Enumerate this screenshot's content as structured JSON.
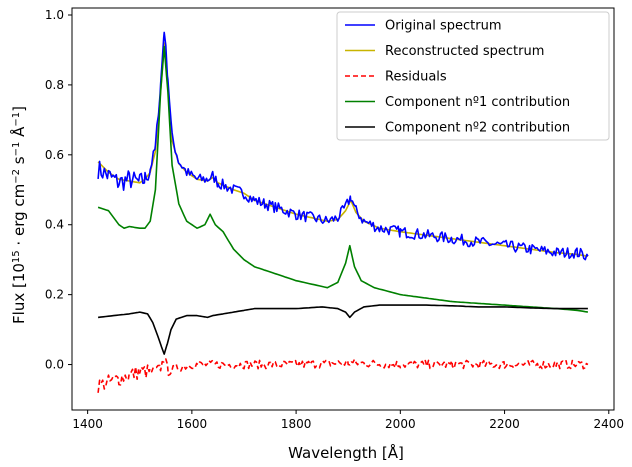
{
  "chart_data": {
    "type": "line",
    "xlabel": "Wavelength [Å]",
    "ylabel_parts": [
      "Flux [10",
      "15",
      " · erg cm",
      "−2",
      " s",
      "−1",
      " Å",
      "−1",
      "]"
    ],
    "xlim": [
      1370,
      2410
    ],
    "ylim": [
      -0.13,
      1.02
    ],
    "xticks": [
      1400,
      1600,
      1800,
      2000,
      2200,
      2400
    ],
    "yticks": [
      0.0,
      0.2,
      0.4,
      0.6,
      0.8,
      1.0
    ],
    "xtick_labels": [
      "1400",
      "1600",
      "1800",
      "2000",
      "2200",
      "2400"
    ],
    "ytick_labels": [
      "0.0",
      "0.2",
      "0.4",
      "0.6",
      "0.8",
      "1.0"
    ],
    "grid": false,
    "legend_position": "top-right",
    "series": [
      {
        "name": "Original spectrum",
        "color": "#0000ff",
        "style": "solid",
        "noise": 0.016,
        "points": [
          [
            1420,
            0.56
          ],
          [
            1440,
            0.54
          ],
          [
            1460,
            0.52
          ],
          [
            1480,
            0.53
          ],
          [
            1500,
            0.52
          ],
          [
            1510,
            0.53
          ],
          [
            1520,
            0.56
          ],
          [
            1530,
            0.62
          ],
          [
            1540,
            0.8
          ],
          [
            1547,
            0.96
          ],
          [
            1554,
            0.82
          ],
          [
            1562,
            0.65
          ],
          [
            1575,
            0.58
          ],
          [
            1590,
            0.55
          ],
          [
            1610,
            0.53
          ],
          [
            1630,
            0.53
          ],
          [
            1640,
            0.54
          ],
          [
            1650,
            0.52
          ],
          [
            1665,
            0.51
          ],
          [
            1680,
            0.5
          ],
          [
            1700,
            0.49
          ],
          [
            1720,
            0.47
          ],
          [
            1740,
            0.46
          ],
          [
            1760,
            0.45
          ],
          [
            1780,
            0.44
          ],
          [
            1800,
            0.43
          ],
          [
            1830,
            0.42
          ],
          [
            1860,
            0.41
          ],
          [
            1880,
            0.42
          ],
          [
            1895,
            0.45
          ],
          [
            1905,
            0.48
          ],
          [
            1915,
            0.44
          ],
          [
            1930,
            0.41
          ],
          [
            1960,
            0.39
          ],
          [
            2000,
            0.38
          ],
          [
            2050,
            0.37
          ],
          [
            2100,
            0.36
          ],
          [
            2150,
            0.35
          ],
          [
            2200,
            0.34
          ],
          [
            2250,
            0.33
          ],
          [
            2300,
            0.32
          ],
          [
            2340,
            0.32
          ],
          [
            2360,
            0.31
          ]
        ]
      },
      {
        "name": "Reconstructed spectrum",
        "color": "#c8b400",
        "style": "solid",
        "noise": 0.0,
        "points": [
          [
            1420,
            0.58
          ],
          [
            1440,
            0.55
          ],
          [
            1460,
            0.53
          ],
          [
            1480,
            0.525
          ],
          [
            1500,
            0.52
          ],
          [
            1510,
            0.53
          ],
          [
            1520,
            0.55
          ],
          [
            1530,
            0.61
          ],
          [
            1540,
            0.78
          ],
          [
            1547,
            0.92
          ],
          [
            1554,
            0.8
          ],
          [
            1562,
            0.64
          ],
          [
            1575,
            0.575
          ],
          [
            1590,
            0.55
          ],
          [
            1610,
            0.53
          ],
          [
            1630,
            0.525
          ],
          [
            1640,
            0.535
          ],
          [
            1650,
            0.52
          ],
          [
            1665,
            0.51
          ],
          [
            1680,
            0.5
          ],
          [
            1700,
            0.49
          ],
          [
            1720,
            0.47
          ],
          [
            1740,
            0.46
          ],
          [
            1760,
            0.45
          ],
          [
            1780,
            0.44
          ],
          [
            1800,
            0.43
          ],
          [
            1830,
            0.42
          ],
          [
            1860,
            0.41
          ],
          [
            1880,
            0.415
          ],
          [
            1895,
            0.44
          ],
          [
            1905,
            0.47
          ],
          [
            1915,
            0.435
          ],
          [
            1930,
            0.41
          ],
          [
            1960,
            0.39
          ],
          [
            2000,
            0.38
          ],
          [
            2050,
            0.37
          ],
          [
            2100,
            0.36
          ],
          [
            2150,
            0.35
          ],
          [
            2200,
            0.34
          ],
          [
            2250,
            0.33
          ],
          [
            2300,
            0.32
          ],
          [
            2340,
            0.315
          ],
          [
            2360,
            0.31
          ]
        ]
      },
      {
        "name": "Residuals",
        "color": "#ff0000",
        "style": "dashed",
        "noise": 0.012,
        "points": [
          [
            1420,
            -0.06
          ],
          [
            1440,
            -0.05
          ],
          [
            1460,
            -0.04
          ],
          [
            1480,
            -0.03
          ],
          [
            1500,
            -0.02
          ],
          [
            1520,
            -0.02
          ],
          [
            1540,
            -0.01
          ],
          [
            1547,
            0.02
          ],
          [
            1555,
            -0.02
          ],
          [
            1570,
            -0.01
          ],
          [
            1600,
            0.0
          ],
          [
            1700,
            0.0
          ],
          [
            1800,
            0.0
          ],
          [
            1900,
            0.005
          ],
          [
            2000,
            0.0
          ],
          [
            2100,
            0.0
          ],
          [
            2200,
            0.0
          ],
          [
            2300,
            0.0
          ],
          [
            2360,
            0.0
          ]
        ]
      },
      {
        "name": "Component nº1 contribution",
        "color": "#008000",
        "style": "solid",
        "noise": 0.0,
        "points": [
          [
            1420,
            0.45
          ],
          [
            1440,
            0.44
          ],
          [
            1460,
            0.4
          ],
          [
            1470,
            0.39
          ],
          [
            1480,
            0.395
          ],
          [
            1500,
            0.39
          ],
          [
            1510,
            0.39
          ],
          [
            1520,
            0.41
          ],
          [
            1530,
            0.5
          ],
          [
            1540,
            0.78
          ],
          [
            1547,
            0.91
          ],
          [
            1554,
            0.78
          ],
          [
            1562,
            0.57
          ],
          [
            1575,
            0.46
          ],
          [
            1590,
            0.41
          ],
          [
            1610,
            0.39
          ],
          [
            1625,
            0.4
          ],
          [
            1635,
            0.43
          ],
          [
            1645,
            0.4
          ],
          [
            1660,
            0.38
          ],
          [
            1680,
            0.33
          ],
          [
            1700,
            0.3
          ],
          [
            1720,
            0.28
          ],
          [
            1740,
            0.27
          ],
          [
            1760,
            0.26
          ],
          [
            1780,
            0.25
          ],
          [
            1800,
            0.24
          ],
          [
            1830,
            0.23
          ],
          [
            1860,
            0.22
          ],
          [
            1880,
            0.235
          ],
          [
            1895,
            0.29
          ],
          [
            1903,
            0.34
          ],
          [
            1912,
            0.28
          ],
          [
            1925,
            0.24
          ],
          [
            1950,
            0.22
          ],
          [
            2000,
            0.2
          ],
          [
            2050,
            0.19
          ],
          [
            2100,
            0.18
          ],
          [
            2150,
            0.175
          ],
          [
            2200,
            0.17
          ],
          [
            2250,
            0.165
          ],
          [
            2300,
            0.16
          ],
          [
            2340,
            0.155
          ],
          [
            2360,
            0.15
          ]
        ]
      },
      {
        "name": "Component nº2 contribution",
        "color": "#000000",
        "style": "solid",
        "noise": 0.0,
        "points": [
          [
            1420,
            0.135
          ],
          [
            1450,
            0.14
          ],
          [
            1480,
            0.145
          ],
          [
            1500,
            0.15
          ],
          [
            1515,
            0.145
          ],
          [
            1525,
            0.12
          ],
          [
            1535,
            0.08
          ],
          [
            1542,
            0.05
          ],
          [
            1547,
            0.03
          ],
          [
            1553,
            0.06
          ],
          [
            1560,
            0.1
          ],
          [
            1570,
            0.13
          ],
          [
            1590,
            0.14
          ],
          [
            1610,
            0.14
          ],
          [
            1630,
            0.135
          ],
          [
            1640,
            0.14
          ],
          [
            1660,
            0.145
          ],
          [
            1680,
            0.15
          ],
          [
            1700,
            0.155
          ],
          [
            1720,
            0.16
          ],
          [
            1750,
            0.16
          ],
          [
            1800,
            0.16
          ],
          [
            1850,
            0.165
          ],
          [
            1880,
            0.16
          ],
          [
            1895,
            0.15
          ],
          [
            1903,
            0.135
          ],
          [
            1912,
            0.15
          ],
          [
            1930,
            0.165
          ],
          [
            1960,
            0.17
          ],
          [
            2000,
            0.17
          ],
          [
            2050,
            0.17
          ],
          [
            2100,
            0.168
          ],
          [
            2150,
            0.165
          ],
          [
            2200,
            0.165
          ],
          [
            2250,
            0.162
          ],
          [
            2300,
            0.16
          ],
          [
            2360,
            0.16
          ]
        ]
      }
    ]
  }
}
